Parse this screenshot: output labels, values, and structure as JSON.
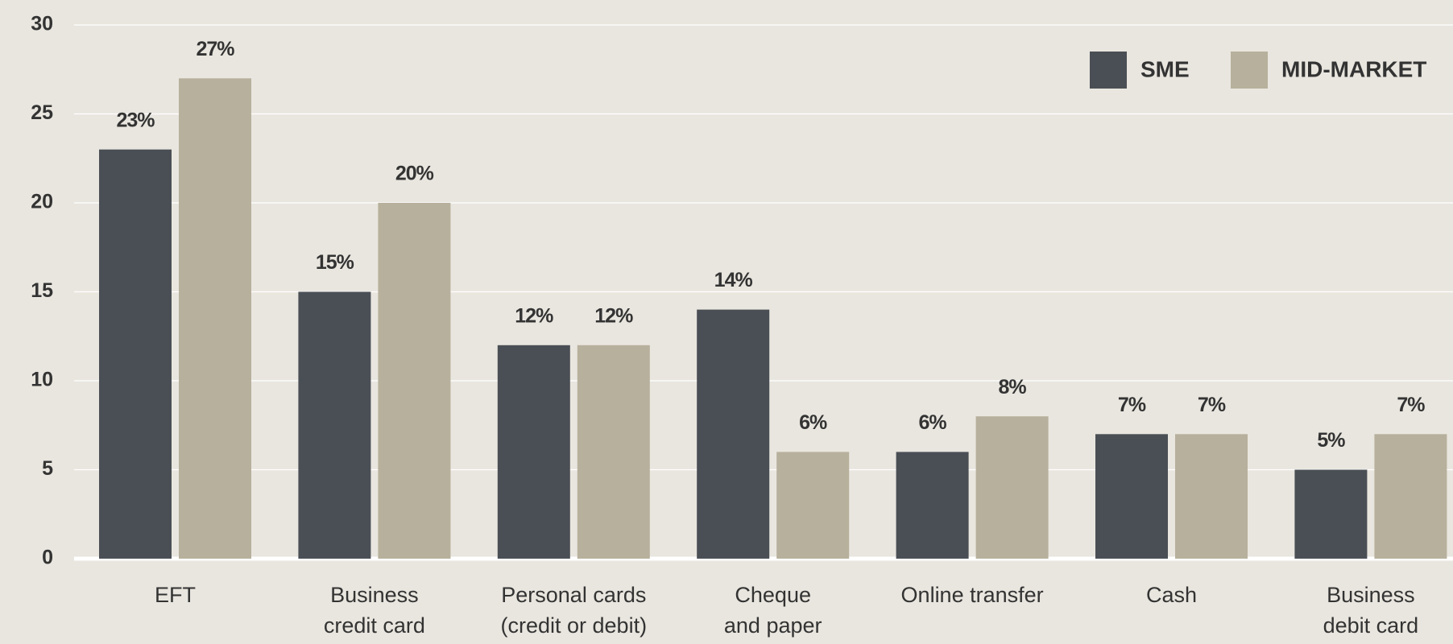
{
  "chart_data": {
    "type": "bar",
    "categories": [
      [
        "EFT"
      ],
      [
        "Business",
        "credit card"
      ],
      [
        "Personal cards",
        "(credit or debit)"
      ],
      [
        "Cheque",
        "and paper"
      ],
      [
        "Online transfer"
      ],
      [
        "Cash"
      ],
      [
        "Business",
        "debit card"
      ]
    ],
    "series": [
      {
        "name": "SME",
        "color": "#4a4f55",
        "values": [
          23,
          15,
          12,
          14,
          6,
          7,
          5
        ],
        "value_labels": [
          "23%",
          "15%",
          "12%",
          "14%",
          "6%",
          "7%",
          "5%"
        ]
      },
      {
        "name": "MID-MARKET",
        "color": "#b7b09c",
        "values": [
          27,
          20,
          12,
          6,
          8,
          7,
          7
        ],
        "value_labels": [
          "27%",
          "20%",
          "12%",
          "6%",
          "8%",
          "7%",
          "7%"
        ]
      }
    ],
    "ylim": [
      0,
      30
    ],
    "yticks": [
      0,
      5,
      10,
      15,
      20,
      25,
      30
    ],
    "grid": true,
    "legend": "top-right"
  }
}
